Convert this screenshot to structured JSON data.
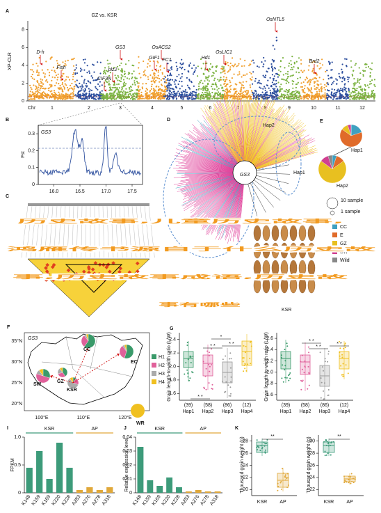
{
  "panel_labels": [
    "A",
    "B",
    "C",
    "D",
    "E",
    "F",
    "G",
    "I",
    "J",
    "K"
  ],
  "A": {
    "title": "GZ vs. KSR",
    "ylabel": "XP-CLR",
    "yticks": [
      0,
      2,
      4,
      6,
      8
    ],
    "ylim": [
      0,
      9
    ],
    "xlabel": "Chr",
    "chromosomes": [
      "1",
      "2",
      "3",
      "4",
      "5",
      "6",
      "7",
      "8",
      "9",
      "10",
      "11",
      "12"
    ],
    "genes": [
      "D-h",
      "Fish",
      "CIF3N",
      "GS3",
      "plz2",
      "GIF1",
      "OsACS2",
      "FC1",
      "Hd1",
      "OsLIC1",
      "OsNTL5",
      "Brd2"
    ]
  },
  "B": {
    "region": "GS3",
    "ylabel": "Fst",
    "yticks": [
      0,
      0.1,
      0.2,
      0.3
    ],
    "ylim": [
      0,
      0.35
    ],
    "xticks": [
      {
        "value": 16,
        "label": "16.0"
      },
      16.5,
      {
        "value": 17,
        "label": "17.0"
      },
      17.5
    ],
    "xlim": [
      15.7,
      17.7
    ]
  },
  "D": {
    "labels": [
      "Hap2",
      "Hap1",
      "GS3",
      "KSR"
    ]
  },
  "E": {
    "haplotypes": [
      "Hap1",
      "Hap2"
    ],
    "size_legend": [
      "10 sample",
      "1 sample"
    ],
    "groups": [
      {
        "name": "CC",
        "color": "#3fa0c0"
      },
      {
        "name": "E",
        "color": "#e06b2a"
      },
      {
        "name": "GZ",
        "color": "#e8c020"
      },
      {
        "name": "SW",
        "color": "#d04090"
      },
      {
        "name": "Wild",
        "color": "#888888"
      }
    ]
  },
  "F": {
    "region": "GS3",
    "haplotypes": [
      {
        "name": "H1",
        "color": "#3a9a6a"
      },
      {
        "name": "H2",
        "color": "#e0609a"
      },
      {
        "name": "H3",
        "color": "#aaaaaa"
      },
      {
        "name": "H4",
        "color": "#f0c020"
      }
    ],
    "regions": [
      "SW",
      "GZ",
      "KSR",
      "CC",
      "EC",
      "WR"
    ],
    "xticks": [
      "100°E",
      "110°E",
      "120°E"
    ],
    "yticks": [
      "35°N",
      "30°N",
      "25°N",
      "20°N"
    ]
  },
  "G": {
    "plots": [
      {
        "ylabel": "Grain length-to-width ratio (L/W)",
        "yticks": [
          1.6,
          1.8,
          {
            "value": 2,
            "label": "2.0"
          },
          2.2,
          2.4
        ],
        "ylim": [
          1.5,
          2.5
        ],
        "significance": [
          "*",
          "* *",
          "* *",
          "* *"
        ]
      },
      {
        "ylabel": "Grain length-to-width ratio (L/W)",
        "yticks": [
          1.6,
          1.8,
          {
            "value": 2,
            "label": "2.0"
          },
          2.2,
          2.4,
          2.6
        ],
        "ylim": [
          1.5,
          2.7
        ],
        "significance": [
          "* *",
          "* *",
          "* *"
        ]
      }
    ],
    "categories": [
      "Hap1",
      "Hap2",
      "Hap3",
      "Hap4"
    ],
    "counts": [
      "(39)",
      "(58)",
      "(86)",
      "(12)"
    ]
  },
  "I": {
    "ylabel": "FPKM",
    "ylim": [
      0,
      1
    ],
    "yticks": [
      0,
      0.5,
      {
        "value": 1,
        "label": "1.0"
      }
    ],
    "series": [
      {
        "name": "KSR",
        "color": "#3d9b7a",
        "categories": [
          "K148",
          "K159",
          "K169",
          "K220",
          "K228"
        ],
        "values": [
          0.45,
          0.75,
          0.25,
          0.9,
          0.45
        ]
      },
      {
        "name": "AP",
        "color": "#e0a83a",
        "categories": [
          "A283",
          "A276",
          "A278",
          "A318"
        ],
        "values": [
          0.05,
          0.1,
          0.05,
          0.1
        ]
      }
    ]
  },
  "J": {
    "ylabel": "Relative expression level",
    "ylim": [
      0,
      0.04
    ],
    "yticks": [
      0,
      0.01,
      0.02,
      0.03,
      0.04
    ],
    "series": [
      {
        "name": "KSR",
        "color": "#3d9b7a",
        "categories": [
          "K148",
          "K159",
          "K169",
          "K220",
          "K228"
        ],
        "values": [
          0.033,
          0.009,
          0.005,
          0.011,
          0.004
        ]
      },
      {
        "name": "AP",
        "color": "#e0a83a",
        "categories": [
          "A283",
          "A276",
          "A278",
          "A318"
        ],
        "values": [
          0.001,
          0.002,
          0.001,
          0.001
        ]
      }
    ]
  },
  "K": {
    "ylabel": "Thousand grain weight (g)",
    "plots": [
      {
        "yticks": [
          20,
          22,
          24,
          26,
          28
        ],
        "ylim": [
          19,
          29
        ]
      },
      {
        "yticks": [
          22,
          24,
          26,
          28,
          30
        ],
        "ylim": [
          21,
          31
        ]
      }
    ],
    "categories": [
      "KSR",
      "AP"
    ],
    "significance": "**"
  },
  "overlay": [
    "历史故事,儿童历史故事,",
    "鸿雁传书源自于什么历史故",
    "事,历史故事成语,历史故",
    "事有哪些"
  ]
}
